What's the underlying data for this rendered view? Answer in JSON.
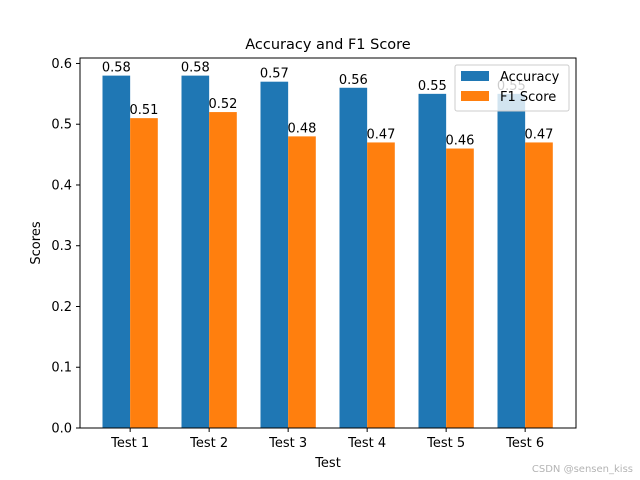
{
  "chart_data": {
    "type": "bar",
    "title": "Accuracy and F1 Score",
    "xlabel": "Test",
    "ylabel": "Scores",
    "categories": [
      "Test 1",
      "Test 2",
      "Test 3",
      "Test 4",
      "Test 5",
      "Test 6"
    ],
    "series": [
      {
        "name": "Accuracy",
        "values": [
          0.58,
          0.58,
          0.57,
          0.56,
          0.55,
          0.55
        ],
        "color": "#1f77b4"
      },
      {
        "name": "F1 Score",
        "values": [
          0.51,
          0.52,
          0.48,
          0.47,
          0.46,
          0.47
        ],
        "color": "#ff7f0e"
      }
    ],
    "ylim": [
      0,
      0.609
    ],
    "yticks": [
      0.0,
      0.1,
      0.2,
      0.3,
      0.4,
      0.5,
      0.6
    ],
    "grid": false,
    "legend": "top-right"
  },
  "watermark": "CSDN @sensen_kiss"
}
